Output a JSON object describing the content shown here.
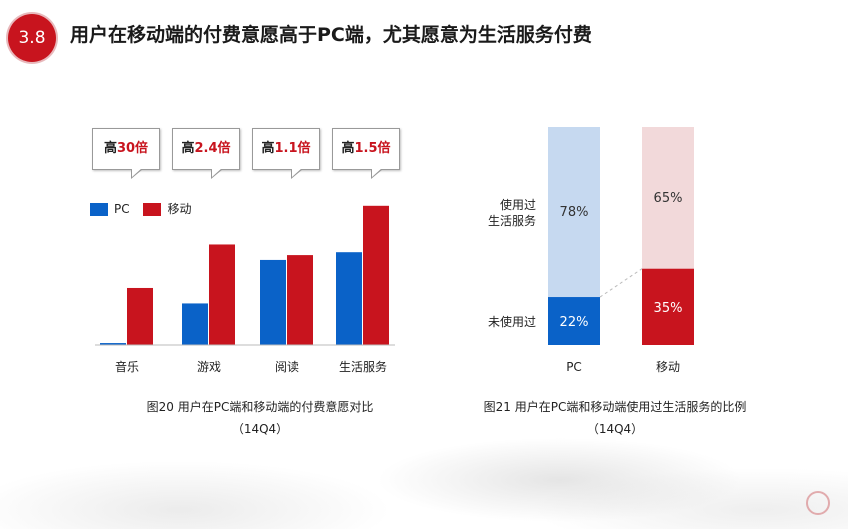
{
  "slide": {
    "section_number": "3.8",
    "title": "用户在移动端的付费意愿高于PC端，尤其愿意为生活服务付费"
  },
  "colors": {
    "pc": "#0a62c8",
    "mobile": "#c8141e",
    "pc_light": "#c6d9f0",
    "mobile_light": "#f2d9da",
    "accent": "#c8141e"
  },
  "chart_data": [
    {
      "type": "bar",
      "categories": [
        "音乐",
        "游戏",
        "阅读",
        "生活服务"
      ],
      "series": [
        {
          "name": "PC",
          "values": [
            2,
            43,
            88,
            96
          ]
        },
        {
          "name": "移动",
          "values": [
            59,
            104,
            93,
            144
          ]
        }
      ],
      "ylim": [
        0,
        150
      ],
      "legend": "top-left",
      "grid": false,
      "callouts": [
        {
          "prefix": "高",
          "value": "30倍"
        },
        {
          "prefix": "高",
          "value": "2.4倍"
        },
        {
          "prefix": "高",
          "value": "1.1倍"
        },
        {
          "prefix": "高",
          "value": "1.5倍"
        }
      ],
      "caption_line1": "图20 用户在PC端和移动端的付费意愿对比",
      "caption_line2": "（14Q4）"
    },
    {
      "type": "bar",
      "stacked": true,
      "percent": true,
      "categories": [
        "PC",
        "移动"
      ],
      "series": [
        {
          "name": "未使用过",
          "values": [
            22,
            35
          ],
          "labels": [
            "22%",
            "35%"
          ]
        },
        {
          "name": "使用过生活服务",
          "values": [
            78,
            65
          ],
          "labels": [
            "78%",
            "65%"
          ]
        }
      ],
      "row_labels": {
        "used_line1": "使用过",
        "used_line2": "生活服务",
        "unused": "未使用过"
      },
      "caption_line1": "图21 用户在PC端和移动端使用过生活服务的比例",
      "caption_line2": "（14Q4）"
    }
  ]
}
